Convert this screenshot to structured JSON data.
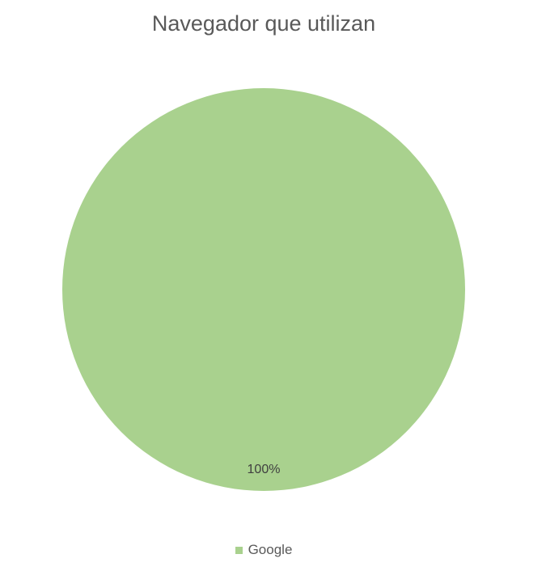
{
  "chart_data": {
    "type": "pie",
    "title": "Navegador que utilizan",
    "categories": [
      "Google"
    ],
    "values": [
      100
    ],
    "data_labels": [
      "100%"
    ],
    "colors": [
      "#a9d18e"
    ],
    "legend": {
      "position": "bottom",
      "entries": [
        "Google"
      ]
    }
  }
}
